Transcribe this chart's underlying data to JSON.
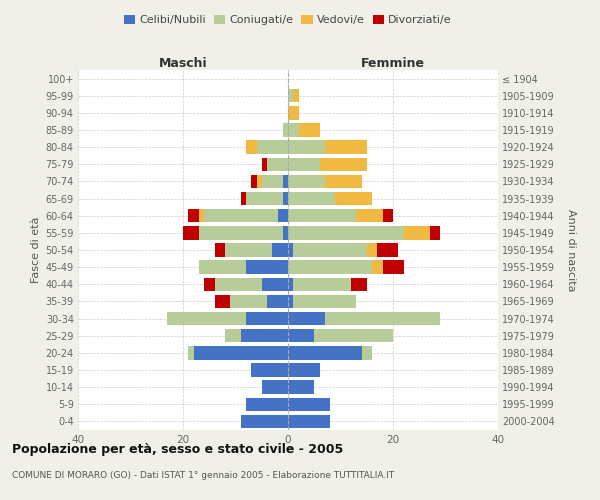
{
  "age_groups": [
    "0-4",
    "5-9",
    "10-14",
    "15-19",
    "20-24",
    "25-29",
    "30-34",
    "35-39",
    "40-44",
    "45-49",
    "50-54",
    "55-59",
    "60-64",
    "65-69",
    "70-74",
    "75-79",
    "80-84",
    "85-89",
    "90-94",
    "95-99",
    "100+"
  ],
  "birth_years": [
    "2000-2004",
    "1995-1999",
    "1990-1994",
    "1985-1989",
    "1980-1984",
    "1975-1979",
    "1970-1974",
    "1965-1969",
    "1960-1964",
    "1955-1959",
    "1950-1954",
    "1945-1949",
    "1940-1944",
    "1935-1939",
    "1930-1934",
    "1925-1929",
    "1920-1924",
    "1915-1919",
    "1910-1914",
    "1905-1909",
    "≤ 1904"
  ],
  "males": {
    "celibi": [
      9,
      8,
      5,
      7,
      18,
      9,
      8,
      4,
      5,
      8,
      3,
      1,
      2,
      1,
      1,
      0,
      0,
      0,
      0,
      0,
      0
    ],
    "coniugati": [
      0,
      0,
      0,
      0,
      1,
      3,
      15,
      7,
      9,
      9,
      9,
      16,
      14,
      7,
      4,
      4,
      6,
      1,
      0,
      0,
      0
    ],
    "vedovi": [
      0,
      0,
      0,
      0,
      0,
      0,
      0,
      0,
      0,
      0,
      0,
      0,
      1,
      0,
      1,
      0,
      2,
      0,
      0,
      0,
      0
    ],
    "divorziati": [
      0,
      0,
      0,
      0,
      0,
      0,
      0,
      3,
      2,
      0,
      2,
      3,
      2,
      1,
      1,
      1,
      0,
      0,
      0,
      0,
      0
    ]
  },
  "females": {
    "nubili": [
      8,
      8,
      5,
      6,
      14,
      5,
      7,
      1,
      1,
      0,
      1,
      0,
      0,
      0,
      0,
      0,
      0,
      0,
      0,
      0,
      0
    ],
    "coniugate": [
      0,
      0,
      0,
      0,
      2,
      15,
      22,
      12,
      11,
      16,
      14,
      22,
      13,
      9,
      7,
      6,
      7,
      2,
      0,
      1,
      0
    ],
    "vedove": [
      0,
      0,
      0,
      0,
      0,
      0,
      0,
      0,
      0,
      2,
      2,
      5,
      5,
      7,
      7,
      9,
      8,
      4,
      2,
      1,
      0
    ],
    "divorziate": [
      0,
      0,
      0,
      0,
      0,
      0,
      0,
      0,
      3,
      4,
      4,
      2,
      2,
      0,
      0,
      0,
      0,
      0,
      0,
      0,
      0
    ]
  },
  "colors": {
    "celibi_nubili": "#4472c4",
    "coniugati_e": "#b8cc9a",
    "vedovi_e": "#f0b942",
    "divorziati_e": "#c00000"
  },
  "xlim": 40,
  "title": "Popolazione per età, sesso e stato civile - 2005",
  "subtitle": "COMUNE DI MORARO (GO) - Dati ISTAT 1° gennaio 2005 - Elaborazione TUTTITALIA.IT",
  "ylabel_left": "Fasce di età",
  "ylabel_right": "Anni di nascita",
  "xlabel_left": "Maschi",
  "xlabel_right": "Femmine",
  "background_color": "#f0f0e8",
  "plot_bg_color": "#ffffff",
  "legend_labels": [
    "Celibi/Nubili",
    "Coniugati/e",
    "Vedovi/e",
    "Divorziati/e"
  ]
}
